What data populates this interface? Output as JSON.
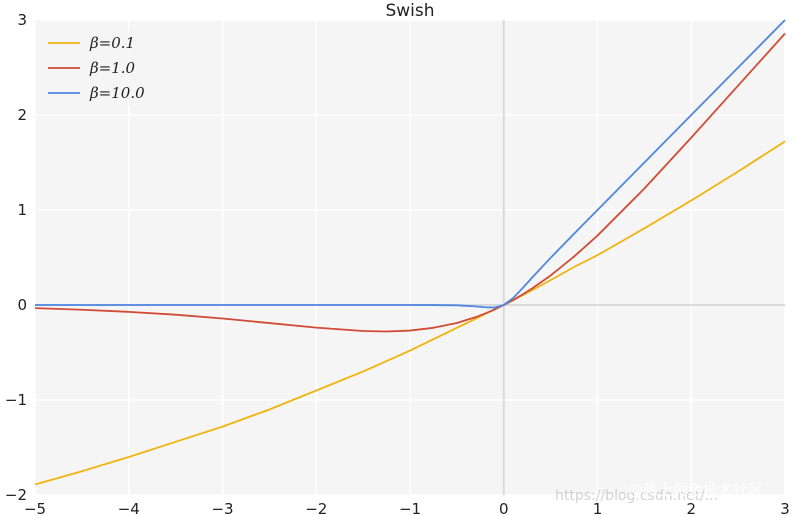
{
  "chart_data": {
    "type": "line",
    "title": "Swish",
    "xlabel": "",
    "ylabel": "",
    "xlim": [
      -5,
      3
    ],
    "ylim": [
      -2,
      3
    ],
    "xticks": [
      -5,
      -4,
      -3,
      -2,
      -1,
      0,
      1,
      2,
      3
    ],
    "yticks": [
      -2,
      -1,
      0,
      1,
      2,
      3
    ],
    "xtick_labels": [
      "−5",
      "−4",
      "−3",
      "−2",
      "−1",
      "0",
      "1",
      "2",
      "3"
    ],
    "ytick_labels": [
      "−2",
      "−1",
      "0",
      "1",
      "2",
      "3"
    ],
    "grid": true,
    "legend_position": "top-left",
    "x": [
      -5.0,
      -4.5,
      -4.0,
      -3.5,
      -3.0,
      -2.5,
      -2.0,
      -1.5,
      -1.25,
      -1.0,
      -0.75,
      -0.5,
      -0.3,
      -0.2,
      -0.1,
      0.0,
      0.1,
      0.2,
      0.3,
      0.5,
      0.75,
      1.0,
      1.5,
      2.0,
      2.5,
      3.0
    ],
    "series": [
      {
        "name": "β = 0.1",
        "label": "β=0.1",
        "color": "#f1b30d",
        "values": [
          -1.89,
          -1.75,
          -1.6,
          -1.44,
          -1.28,
          -1.1,
          -0.9,
          -0.7,
          -0.59,
          -0.48,
          -0.36,
          -0.24,
          -0.145,
          -0.096,
          -0.048,
          0.0,
          0.051,
          0.102,
          0.154,
          0.262,
          0.4,
          0.525,
          0.807,
          1.1,
          1.405,
          1.723
        ]
      },
      {
        "name": "β = 1.0",
        "label": "β=1.0",
        "color": "#d24b35",
        "values": [
          -0.033,
          -0.05,
          -0.072,
          -0.102,
          -0.142,
          -0.19,
          -0.238,
          -0.274,
          -0.279,
          -0.269,
          -0.24,
          -0.189,
          -0.128,
          -0.09,
          -0.048,
          0.0,
          0.052,
          0.11,
          0.172,
          0.311,
          0.51,
          0.731,
          1.226,
          1.762,
          2.31,
          2.858
        ]
      },
      {
        "name": "β = 10.0",
        "label": "β=10.0",
        "color": "#4f86e0",
        "values": [
          0.0,
          0.0,
          0.0,
          0.0,
          0.0,
          0.0,
          0.0,
          0.0,
          0.0,
          0.0,
          -0.0004,
          -0.0034,
          -0.0142,
          -0.0238,
          -0.0269,
          0.0,
          0.0731,
          0.1762,
          0.2857,
          0.4966,
          0.7496,
          1.0,
          1.5,
          2.0,
          2.5,
          3.0
        ]
      }
    ]
  },
  "watermark": {
    "text": "@稀土掘金技术社区",
    "url_fragment": "https://blog.csdn.net/..."
  },
  "colors": {
    "plot_background": "#f5f5f5",
    "grid": "#ffffff",
    "zero_axis": "#d9d9d9"
  }
}
